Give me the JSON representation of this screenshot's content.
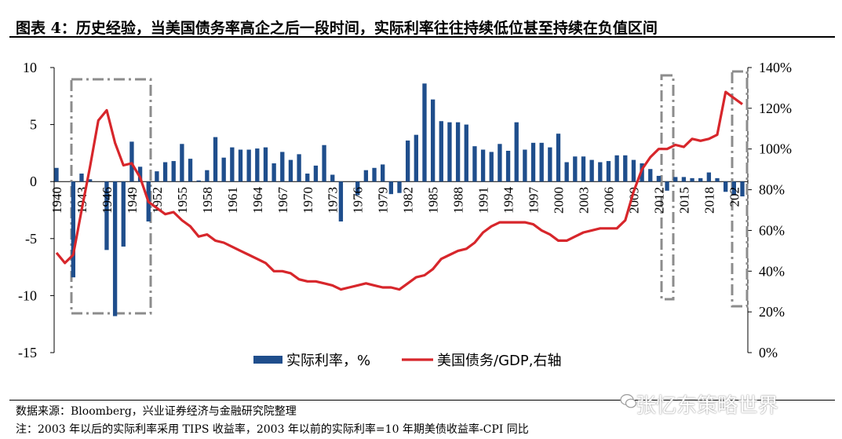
{
  "header": {
    "title": "图表 4：历史经验，当美国债务率高企之后一段时间，实际利率往往持续低位甚至持续在负值区间"
  },
  "footer": {
    "source": "数据来源：Bloomberg，兴业证券经济与金融研究院整理",
    "note": "注：2003 年以后的实际利率采用 TIPS 收益率，2003 年以前的实际利率=10 年期美债收益率-CPI 同比"
  },
  "watermark": {
    "text": "张忆东策略世界"
  },
  "chart_data": {
    "type": "bar",
    "colors": {
      "bar": "#1f4e8c",
      "line": "#d7262b",
      "highlight_box": "#8c8c8c"
    },
    "y_left": {
      "min": -15,
      "max": 10,
      "ticks": [
        10,
        5,
        0,
        -5,
        -10,
        -15
      ]
    },
    "y_right": {
      "min": 0,
      "max": 140,
      "ticks": [
        "140%",
        "120%",
        "100%",
        "80%",
        "60%",
        "40%",
        "20%",
        "0%"
      ]
    },
    "x_labels": [
      "1940",
      "1943",
      "1946",
      "1949",
      "1952",
      "1955",
      "1958",
      "1961",
      "1964",
      "1967",
      "1970",
      "1973",
      "1976",
      "1979",
      "1982",
      "1985",
      "1988",
      "1991",
      "1994",
      "1997",
      "2000",
      "2003",
      "2006",
      "2009",
      "2012",
      "2015",
      "2018",
      "202"
    ],
    "legend": {
      "bar_label": "实际利率，%",
      "line_label": "美国债务/GDP,右轴"
    },
    "series": [
      {
        "name": "实际利率，%",
        "kind": "bar",
        "x": [
          1940,
          1941,
          1942,
          1943,
          1944,
          1945,
          1946,
          1947,
          1948,
          1949,
          1950,
          1951,
          1952,
          1953,
          1954,
          1955,
          1956,
          1957,
          1958,
          1959,
          1960,
          1961,
          1962,
          1963,
          1964,
          1965,
          1966,
          1967,
          1968,
          1969,
          1970,
          1971,
          1972,
          1973,
          1974,
          1975,
          1976,
          1977,
          1978,
          1979,
          1980,
          1981,
          1982,
          1983,
          1984,
          1985,
          1986,
          1987,
          1988,
          1989,
          1990,
          1991,
          1992,
          1993,
          1994,
          1995,
          1996,
          1997,
          1998,
          1999,
          2000,
          2001,
          2002,
          2003,
          2004,
          2005,
          2006,
          2007,
          2008,
          2009,
          2010,
          2011,
          2012,
          2013,
          2014,
          2015,
          2016,
          2017,
          2018,
          2019,
          2020,
          2021,
          2022
        ],
        "values": [
          1.2,
          0.0,
          -8.4,
          0.7,
          0.2,
          0.0,
          -6.0,
          -11.8,
          -5.7,
          3.5,
          1.3,
          -3.5,
          0.9,
          1.7,
          1.8,
          3.3,
          2.0,
          0.1,
          1.0,
          3.9,
          2.1,
          3.0,
          2.8,
          2.8,
          2.9,
          3.0,
          1.6,
          2.6,
          1.9,
          2.4,
          0.7,
          1.4,
          3.2,
          0.6,
          -3.5,
          0.0,
          -1.2,
          1.0,
          1.2,
          1.5,
          -1.1,
          -1.0,
          3.6,
          4.1,
          8.6,
          7.2,
          5.3,
          5.2,
          5.2,
          5.0,
          3.1,
          2.8,
          2.6,
          3.3,
          2.7,
          5.2,
          2.8,
          3.4,
          3.4,
          3.0,
          4.2,
          1.7,
          2.2,
          2.2,
          1.9,
          1.7,
          1.8,
          2.3,
          2.3,
          1.9,
          1.6,
          1.1,
          0.5,
          -0.8,
          0.4,
          0.4,
          0.3,
          0.3,
          0.8,
          0.3,
          -0.9,
          -1.2,
          -1.3
        ]
      },
      {
        "name": "美国债务/GDP,右轴",
        "kind": "line",
        "axis": "right",
        "x": [
          1940,
          1941,
          1942,
          1943,
          1944,
          1945,
          1946,
          1947,
          1948,
          1949,
          1950,
          1951,
          1952,
          1953,
          1954,
          1955,
          1956,
          1957,
          1958,
          1959,
          1960,
          1961,
          1962,
          1963,
          1964,
          1965,
          1966,
          1967,
          1968,
          1969,
          1970,
          1971,
          1972,
          1973,
          1974,
          1975,
          1976,
          1977,
          1978,
          1979,
          1980,
          1981,
          1982,
          1983,
          1984,
          1985,
          1986,
          1987,
          1988,
          1989,
          1990,
          1991,
          1992,
          1993,
          1994,
          1995,
          1996,
          1997,
          1998,
          1999,
          2000,
          2001,
          2002,
          2003,
          2004,
          2005,
          2006,
          2007,
          2008,
          2009,
          2010,
          2011,
          2012,
          2013,
          2014,
          2015,
          2016,
          2017,
          2018,
          2019,
          2020,
          2021,
          2022
        ],
        "values": [
          49,
          44,
          48,
          70,
          91,
          114,
          119,
          103,
          92,
          93,
          86,
          74,
          71,
          68,
          69,
          65,
          62,
          57,
          58,
          55,
          54,
          52,
          50,
          48,
          46,
          44,
          40,
          40,
          39,
          36,
          35,
          35,
          34,
          33,
          31,
          32,
          33,
          34,
          33,
          32,
          32,
          31,
          34,
          37,
          38,
          41,
          46,
          48,
          50,
          51,
          54,
          59,
          62,
          64,
          64,
          64,
          64,
          63,
          60,
          58,
          55,
          55,
          57,
          59,
          60,
          61,
          61,
          61,
          65,
          79,
          90,
          96,
          100,
          100,
          102,
          101,
          105,
          104,
          105,
          107,
          128,
          125,
          122
        ]
      }
    ],
    "highlight_ranges": [
      [
        1942,
        1951
      ],
      [
        2009,
        2011
      ],
      [
        2020,
        2022
      ]
    ]
  }
}
